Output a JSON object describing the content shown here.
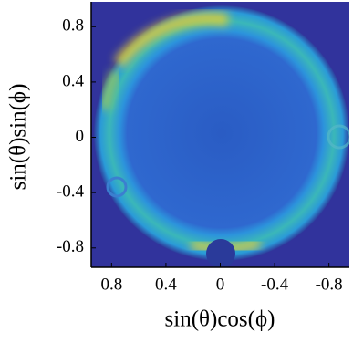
{
  "chart_data": {
    "type": "heatmap",
    "x_label": "sin(θ)cos(ϕ)",
    "y_label": "sin(θ)sin(ϕ)",
    "xlim": [
      0.95,
      -0.95
    ],
    "xticks": [
      0.8,
      0.4,
      0,
      -0.4,
      -0.8
    ],
    "ylim": [
      -0.94,
      0.98
    ],
    "yticks": [
      0.8,
      0.4,
      0,
      -0.4,
      -0.8
    ]
  }
}
